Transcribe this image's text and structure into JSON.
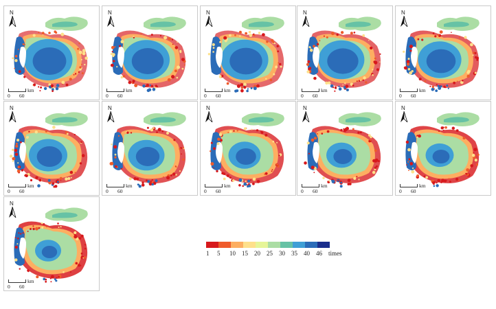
{
  "maps": {
    "north_label": "N",
    "scale_unit": "km",
    "scale_min": "0",
    "scale_max": "60",
    "panels": [
      {
        "blue": 0.85,
        "red": 0.2
      },
      {
        "blue": 0.8,
        "red": 0.3
      },
      {
        "blue": 0.82,
        "red": 0.25
      },
      {
        "blue": 0.78,
        "red": 0.3
      },
      {
        "blue": 0.72,
        "red": 0.4
      },
      {
        "blue": 0.6,
        "red": 0.5
      },
      {
        "blue": 0.55,
        "red": 0.5
      },
      {
        "blue": 0.45,
        "red": 0.55
      },
      {
        "blue": 0.4,
        "red": 0.55
      },
      {
        "blue": 0.35,
        "red": 0.65
      },
      {
        "blue": 0.3,
        "red": 0.7
      }
    ]
  },
  "legend": {
    "labels": [
      "1",
      "5",
      "10",
      "15",
      "20",
      "25",
      "30",
      "35",
      "40",
      "46"
    ],
    "unit": "times",
    "colors": [
      "#d7191c",
      "#ef5b2b",
      "#fdae61",
      "#fee08b",
      "#e6f598",
      "#abdda4",
      "#66c2a5",
      "#3f9fd6",
      "#2b6cb8",
      "#1a2e8c"
    ]
  }
}
